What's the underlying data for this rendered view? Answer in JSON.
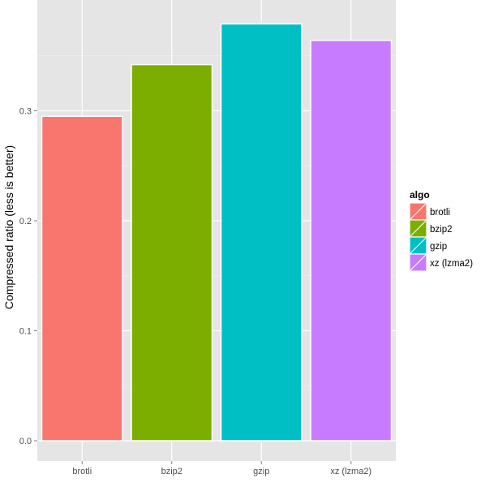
{
  "chart_data": {
    "type": "bar",
    "title": "",
    "xlabel": "",
    "ylabel": "Compressed ratio (less is better)",
    "categories": [
      "brotli",
      "bzip2",
      "gzip",
      "xz (lzma2)"
    ],
    "values": [
      0.295,
      0.342,
      0.379,
      0.364
    ],
    "colors": [
      "#F8766D",
      "#7CAE00",
      "#00BFC4",
      "#C77CFF"
    ],
    "ylim": [
      0,
      0.394
    ],
    "yticks": [
      0.0,
      0.1,
      0.2,
      0.3
    ],
    "ytick_labels": [
      "0.0",
      "0.1",
      "0.2",
      "0.3"
    ],
    "grid": true,
    "panel_background": "#E5E5E5",
    "legend": {
      "title": "algo",
      "position": "right",
      "entries": [
        "brotli",
        "bzip2",
        "gzip",
        "xz (lzma2)"
      ]
    }
  }
}
